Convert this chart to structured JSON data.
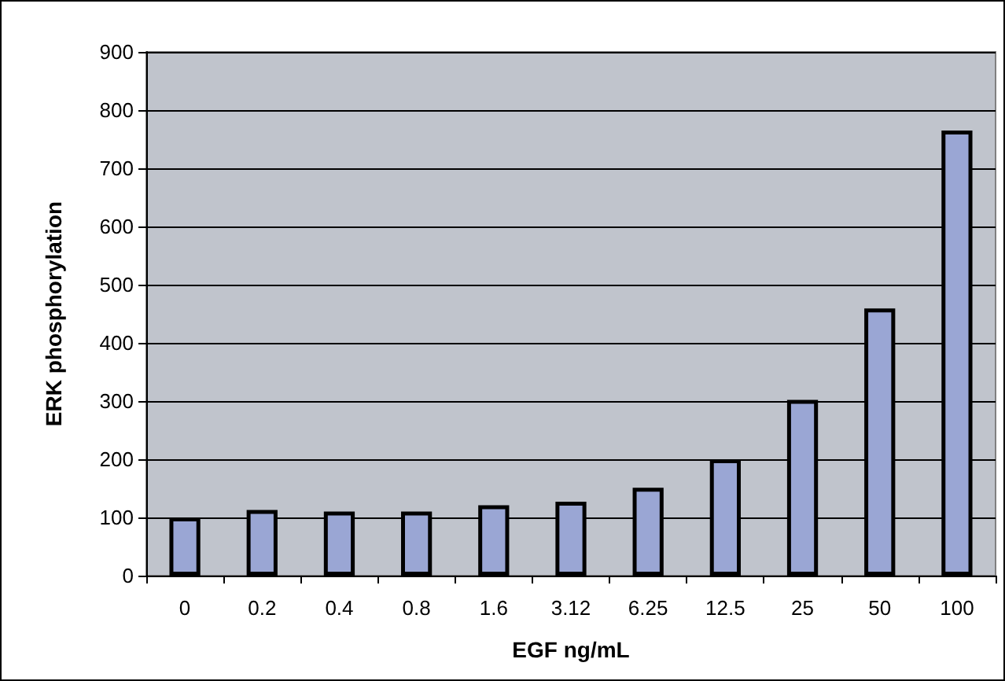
{
  "chart_data": {
    "type": "bar",
    "xlabel": "EGF ng/mL",
    "ylabel": "ERK phosphorylation",
    "categories": [
      "0",
      "0.2",
      "0.4",
      "0.8",
      "1.6",
      "3.12",
      "6.25",
      "12.5",
      "25",
      "50",
      "100"
    ],
    "values": [
      100,
      113,
      110,
      110,
      121,
      127,
      151,
      200,
      302,
      459,
      765
    ],
    "color": "#9aa6d4",
    "ylim": [
      0,
      900
    ],
    "yticks": [
      0,
      100,
      200,
      300,
      400,
      500,
      600,
      700,
      800,
      900
    ],
    "grid": "y"
  }
}
